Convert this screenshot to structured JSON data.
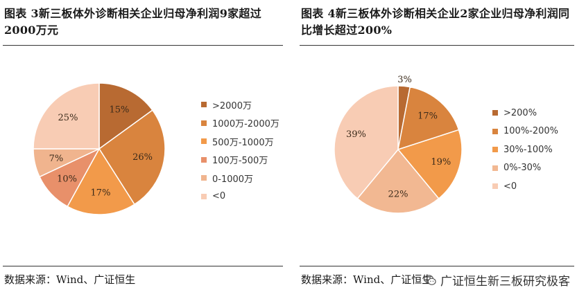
{
  "left_panel": {
    "title": "图表 3新三板体外诊断相关企业归母净利润9家超过2000万元",
    "source": "数据来源：Wind、广证恒生"
  },
  "right_panel": {
    "title": "图表 4新三板体外诊断相关企业2家企业归母净利润同比增长超过200%",
    "source": "数据来源：Wind、广证恒生"
  },
  "watermark": {
    "text": "广证恒生新三板研究极客",
    "icon": "wechat-icon"
  },
  "chart_data": [
    {
      "type": "pie",
      "title": "",
      "categories": [
        ">2000万",
        "1000万-2000万",
        "500万-1000万",
        "100万-500万",
        "0-1000万",
        "<0"
      ],
      "values": [
        15,
        26,
        17,
        10,
        7,
        25
      ],
      "labels": [
        "15%",
        "26%",
        "17%",
        "10%",
        "7%",
        "25%"
      ],
      "colors": [
        "#b86a32",
        "#d9843e",
        "#f29a4a",
        "#e8906a",
        "#f0b48e",
        "#f8ccb4"
      ],
      "legend_position": "right"
    },
    {
      "type": "pie",
      "title": "",
      "categories": [
        ">200%",
        "100%-200%",
        "30%-100%",
        "0%-30%",
        "<0"
      ],
      "values": [
        3,
        17,
        19,
        22,
        39
      ],
      "labels": [
        "3%",
        "17%",
        "19%",
        "22%",
        "39%"
      ],
      "colors": [
        "#b86a32",
        "#d9843e",
        "#f29a4a",
        "#f2b892",
        "#f8ccb4"
      ],
      "legend_position": "right"
    }
  ]
}
